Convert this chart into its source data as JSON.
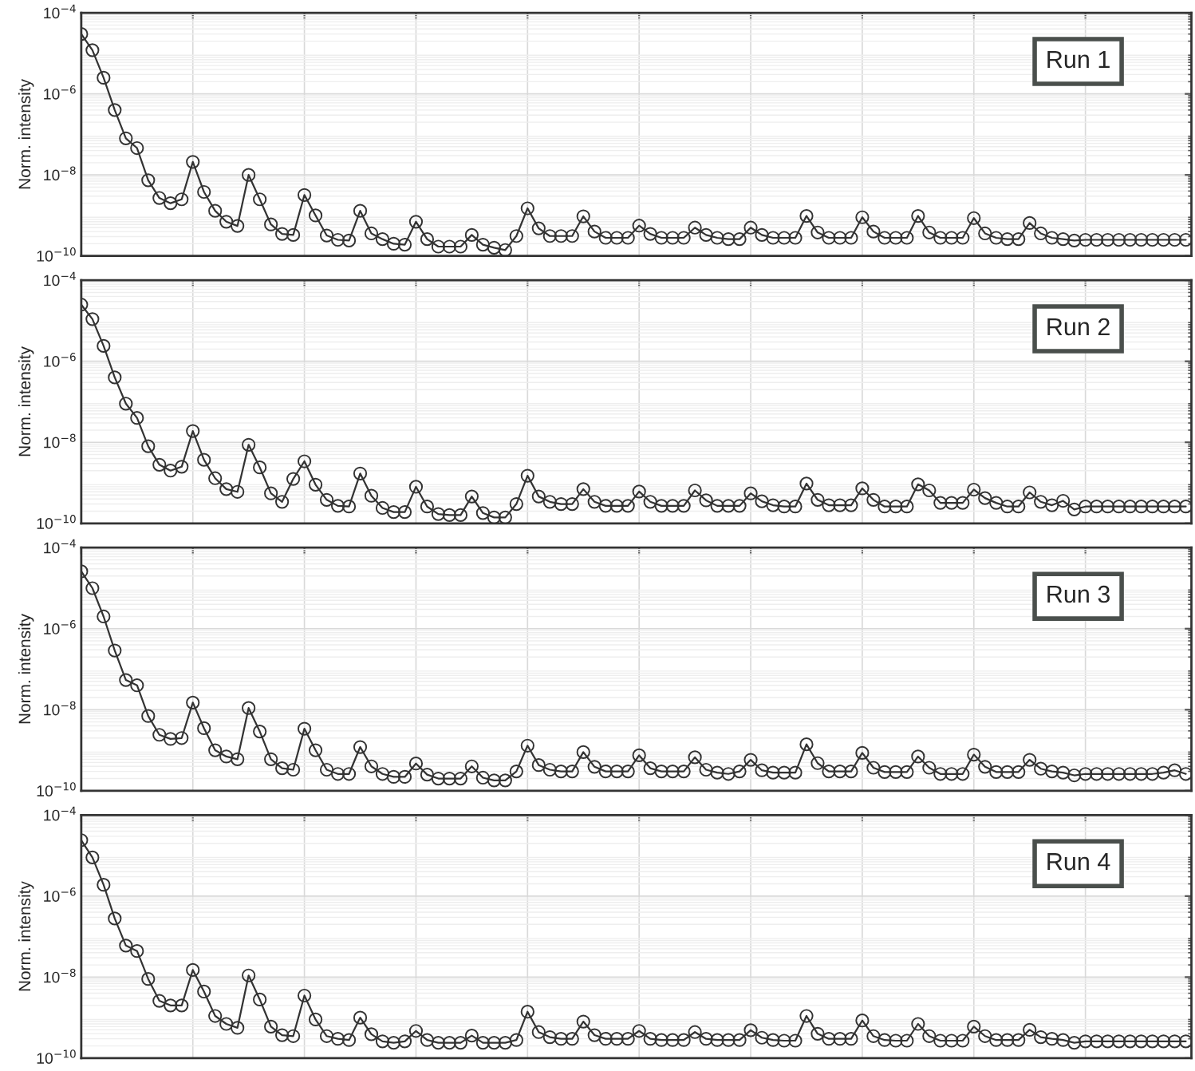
{
  "chart_data": [
    {
      "type": "line",
      "ylabel": "Norm. intensity",
      "annotations": [
        "Run 1"
      ],
      "log": true,
      "grid": true,
      "tick_labels": "y",
      "marker": "circle",
      "line_style": "solid",
      "ylim": [
        1e-10,
        0.0001
      ],
      "yticks": [
        {
          "value": 1e-10,
          "label": "10$^{−10}$"
        },
        {
          "value": 1e-08,
          "label": "10$^{−8}$"
        },
        {
          "value": 1e-06,
          "label": "10$^{−6}$"
        },
        {
          "value": 0.0001,
          "label": "10$^{−4}$"
        }
      ],
      "categories": [
        null,
        null,
        null,
        null,
        null,
        null,
        null,
        null,
        null,
        null,
        null,
        null,
        null,
        null,
        null,
        null,
        null,
        null,
        null,
        null,
        null,
        null,
        null,
        null,
        null,
        null,
        null,
        null,
        null,
        null,
        null,
        null,
        null,
        null,
        null,
        null,
        null,
        null,
        null,
        null,
        null,
        null,
        null,
        null,
        null,
        null,
        null,
        null,
        null,
        null,
        null,
        null,
        null,
        null,
        null,
        null,
        null,
        null,
        null,
        null,
        null,
        null,
        null,
        null,
        null,
        null,
        null,
        null,
        null,
        null,
        null,
        null,
        null,
        null,
        null,
        null,
        null,
        null,
        null,
        null,
        null,
        null,
        null,
        null,
        null,
        null,
        null,
        null,
        null,
        null,
        null,
        null,
        null,
        null,
        null,
        null,
        null,
        null,
        null,
        null
      ],
      "series": [
        {
          "color": "#333333",
          "values": [
            3e-05,
            1.2e-05,
            2.5e-06,
            4e-07,
            8e-08,
            4.6e-08,
            7.4e-09,
            2.7e-09,
            2e-09,
            2.5e-09,
            2.1e-08,
            3.8e-09,
            1.3e-09,
            7e-10,
            5.5e-10,
            1e-08,
            2.5e-09,
            6e-10,
            3.5e-10,
            3.3e-10,
            3.2e-09,
            1e-09,
            3.2e-10,
            2.5e-10,
            2.4e-10,
            1.3e-09,
            3.6e-10,
            2.6e-10,
            2e-10,
            1.9e-10,
            7e-10,
            2.6e-10,
            1.7e-10,
            1.7e-10,
            1.7e-10,
            3.3e-10,
            1.9e-10,
            1.6e-10,
            1.4e-10,
            3.1e-10,
            1.5e-09,
            4.8e-10,
            3.1e-10,
            3.1e-10,
            3.1e-10,
            9.5e-10,
            4e-10,
            2.8e-10,
            2.8e-10,
            2.8e-10,
            5.6e-10,
            3.5e-10,
            2.8e-10,
            2.8e-10,
            2.8e-10,
            5e-10,
            3.3e-10,
            2.8e-10,
            2.6e-10,
            2.6e-10,
            5e-10,
            3.3e-10,
            2.8e-10,
            2.8e-10,
            2.8e-10,
            9.7e-10,
            3.8e-10,
            2.8e-10,
            2.8e-10,
            2.8e-10,
            9e-10,
            4e-10,
            2.8e-10,
            2.8e-10,
            2.8e-10,
            9.7e-10,
            3.8e-10,
            2.8e-10,
            2.8e-10,
            2.8e-10,
            8.6e-10,
            3.6e-10,
            2.8e-10,
            2.6e-10,
            2.6e-10,
            6.5e-10,
            3.6e-10,
            2.8e-10,
            2.6e-10,
            2.4e-10,
            2.5e-10,
            2.5e-10,
            2.5e-10,
            2.5e-10,
            2.5e-10,
            2.5e-10,
            2.5e-10,
            2.5e-10,
            2.5e-10,
            2.5e-10
          ]
        }
      ]
    },
    {
      "type": "line",
      "ylabel": "Norm. intensity",
      "annotations": [
        "Run 2"
      ],
      "log": true,
      "grid": true,
      "tick_labels": "y",
      "marker": "circle",
      "line_style": "solid",
      "ylim": [
        1e-10,
        0.0001
      ],
      "yticks": [
        {
          "value": 1e-10,
          "label": "10$^{−10}$"
        },
        {
          "value": 1e-08,
          "label": "10$^{−8}$"
        },
        {
          "value": 1e-06,
          "label": "10$^{−6}$"
        },
        {
          "value": 0.0001,
          "label": "10$^{−4}$"
        }
      ],
      "categories": [
        null,
        null,
        null,
        null,
        null,
        null,
        null,
        null,
        null,
        null,
        null,
        null,
        null,
        null,
        null,
        null,
        null,
        null,
        null,
        null,
        null,
        null,
        null,
        null,
        null,
        null,
        null,
        null,
        null,
        null,
        null,
        null,
        null,
        null,
        null,
        null,
        null,
        null,
        null,
        null,
        null,
        null,
        null,
        null,
        null,
        null,
        null,
        null,
        null,
        null,
        null,
        null,
        null,
        null,
        null,
        null,
        null,
        null,
        null,
        null,
        null,
        null,
        null,
        null,
        null,
        null,
        null,
        null,
        null,
        null,
        null,
        null,
        null,
        null,
        null,
        null,
        null,
        null,
        null,
        null,
        null,
        null,
        null,
        null,
        null,
        null,
        null,
        null,
        null,
        null,
        null,
        null,
        null,
        null,
        null,
        null,
        null,
        null,
        null,
        null
      ],
      "series": [
        {
          "color": "#333333",
          "values": [
            2.5e-05,
            1.1e-05,
            2.4e-06,
            4e-07,
            9e-08,
            4e-08,
            8e-09,
            2.8e-09,
            2e-09,
            2.5e-09,
            1.9e-08,
            3.7e-09,
            1.3e-09,
            7e-10,
            6e-10,
            8.7e-09,
            2.4e-09,
            5.5e-10,
            3.4e-10,
            1.25e-09,
            3.4e-09,
            9e-10,
            3.8e-10,
            2.7e-10,
            2.6e-10,
            1.7e-09,
            4.8e-10,
            2.4e-10,
            1.9e-10,
            1.9e-10,
            8e-10,
            2.6e-10,
            1.7e-10,
            1.6e-10,
            1.6e-10,
            4.6e-10,
            1.8e-10,
            1.4e-10,
            1.4e-10,
            3e-10,
            1.5e-09,
            4.6e-10,
            3.4e-10,
            3e-10,
            3e-10,
            7e-10,
            3.4e-10,
            2.7e-10,
            2.7e-10,
            2.7e-10,
            6.1e-10,
            3.4e-10,
            2.7e-10,
            2.7e-10,
            2.7e-10,
            6.5e-10,
            3.7e-10,
            2.7e-10,
            2.7e-10,
            2.7e-10,
            5.5e-10,
            3.5e-10,
            2.8e-10,
            2.6e-10,
            2.6e-10,
            9.6e-10,
            3.8e-10,
            2.8e-10,
            2.8e-10,
            2.8e-10,
            7.3e-10,
            3.8e-10,
            2.6e-10,
            2.6e-10,
            2.6e-10,
            9.2e-10,
            6.5e-10,
            3.2e-10,
            3.2e-10,
            3.2e-10,
            6.8e-10,
            4.2e-10,
            3.2e-10,
            2.6e-10,
            2.6e-10,
            5.8e-10,
            3.4e-10,
            2.8e-10,
            3.6e-10,
            2.2e-10,
            2.6e-10,
            2.6e-10,
            2.6e-10,
            2.6e-10,
            2.6e-10,
            2.6e-10,
            2.6e-10,
            2.6e-10,
            2.6e-10,
            2.6e-10
          ]
        }
      ]
    },
    {
      "type": "line",
      "ylabel": "Norm. intensity",
      "annotations": [
        "Run 3"
      ],
      "log": true,
      "grid": true,
      "tick_labels": "y",
      "marker": "circle",
      "line_style": "solid",
      "ylim": [
        1e-10,
        0.0001
      ],
      "yticks": [
        {
          "value": 1e-10,
          "label": "10$^{−10}$"
        },
        {
          "value": 1e-08,
          "label": "10$^{−8}$"
        },
        {
          "value": 1e-06,
          "label": "10$^{−6}$"
        },
        {
          "value": 0.0001,
          "label": "10$^{−4}$"
        }
      ],
      "categories": [
        null,
        null,
        null,
        null,
        null,
        null,
        null,
        null,
        null,
        null,
        null,
        null,
        null,
        null,
        null,
        null,
        null,
        null,
        null,
        null,
        null,
        null,
        null,
        null,
        null,
        null,
        null,
        null,
        null,
        null,
        null,
        null,
        null,
        null,
        null,
        null,
        null,
        null,
        null,
        null,
        null,
        null,
        null,
        null,
        null,
        null,
        null,
        null,
        null,
        null,
        null,
        null,
        null,
        null,
        null,
        null,
        null,
        null,
        null,
        null,
        null,
        null,
        null,
        null,
        null,
        null,
        null,
        null,
        null,
        null,
        null,
        null,
        null,
        null,
        null,
        null,
        null,
        null,
        null,
        null,
        null,
        null,
        null,
        null,
        null,
        null,
        null,
        null,
        null,
        null,
        null,
        null,
        null,
        null,
        null,
        null,
        null,
        null,
        null,
        null
      ],
      "series": [
        {
          "color": "#333333",
          "values": [
            2.6e-05,
            1e-05,
            2e-06,
            2.9e-07,
            5.4e-08,
            4e-08,
            7e-09,
            2.4e-09,
            1.9e-09,
            2e-09,
            1.5e-08,
            3.5e-09,
            1e-09,
            7e-10,
            6e-10,
            1.1e-08,
            2.9e-09,
            6e-10,
            3.6e-10,
            3.3e-10,
            3.4e-09,
            1e-09,
            3.3e-10,
            2.6e-10,
            2.6e-10,
            1.2e-09,
            4e-10,
            2.6e-10,
            2.2e-10,
            2.2e-10,
            4.7e-10,
            2.5e-10,
            2e-10,
            2e-10,
            2e-10,
            4e-10,
            2.1e-10,
            1.8e-10,
            1.8e-10,
            3e-10,
            1.3e-09,
            4.3e-10,
            3.3e-10,
            3e-10,
            3e-10,
            9e-10,
            3.9e-10,
            3e-10,
            3e-10,
            3e-10,
            7.5e-10,
            3.6e-10,
            3e-10,
            3e-10,
            3e-10,
            6.7e-10,
            3.3e-10,
            2.8e-10,
            2.6e-10,
            3e-10,
            5.8e-10,
            3.2e-10,
            2.8e-10,
            2.8e-10,
            2.8e-10,
            1.4e-09,
            4.8e-10,
            3e-10,
            3e-10,
            3e-10,
            8.6e-10,
            3.7e-10,
            2.9e-10,
            2.9e-10,
            2.9e-10,
            7e-10,
            3.7e-10,
            2.6e-10,
            2.6e-10,
            2.6e-10,
            7.8e-10,
            3.9e-10,
            2.9e-10,
            2.9e-10,
            2.9e-10,
            5.8e-10,
            3.5e-10,
            3e-10,
            2.8e-10,
            2.4e-10,
            2.6e-10,
            2.6e-10,
            2.6e-10,
            2.6e-10,
            2.6e-10,
            2.6e-10,
            2.6e-10,
            2.8e-10,
            3.2e-10,
            2.6e-10
          ]
        }
      ]
    },
    {
      "type": "line",
      "ylabel": "Norm. intensity",
      "annotations": [
        "Run 4"
      ],
      "log": true,
      "grid": true,
      "tick_labels": "y",
      "marker": "circle",
      "line_style": "solid",
      "ylim": [
        1e-10,
        0.0001
      ],
      "yticks": [
        {
          "value": 1e-10,
          "label": "10$^{−10}$"
        },
        {
          "value": 1e-08,
          "label": "10$^{−8}$"
        },
        {
          "value": 1e-06,
          "label": "10$^{−6}$"
        },
        {
          "value": 0.0001,
          "label": "10$^{−4}$"
        }
      ],
      "categories": [
        null,
        null,
        null,
        null,
        null,
        null,
        null,
        null,
        null,
        null,
        null,
        null,
        null,
        null,
        null,
        null,
        null,
        null,
        null,
        null,
        null,
        null,
        null,
        null,
        null,
        null,
        null,
        null,
        null,
        null,
        null,
        null,
        null,
        null,
        null,
        null,
        null,
        null,
        null,
        null,
        null,
        null,
        null,
        null,
        null,
        null,
        null,
        null,
        null,
        null,
        null,
        null,
        null,
        null,
        null,
        null,
        null,
        null,
        null,
        null,
        null,
        null,
        null,
        null,
        null,
        null,
        null,
        null,
        null,
        null,
        null,
        null,
        null,
        null,
        null,
        null,
        null,
        null,
        null,
        null,
        null,
        null,
        null,
        null,
        null,
        null,
        null,
        null,
        null,
        null,
        null,
        null,
        null,
        null,
        null,
        null,
        null,
        null,
        null,
        null
      ],
      "series": [
        {
          "color": "#333333",
          "values": [
            2.4e-05,
            9e-06,
            1.9e-06,
            2.8e-07,
            6e-08,
            4.4e-08,
            9e-09,
            2.6e-09,
            2e-09,
            2e-09,
            1.5e-08,
            4.4e-09,
            1.1e-09,
            7e-10,
            5.6e-10,
            1.1e-08,
            2.8e-09,
            6e-10,
            3.7e-10,
            3.5e-10,
            3.5e-09,
            9e-10,
            3.5e-10,
            3e-10,
            2.8e-10,
            1e-09,
            3.9e-10,
            2.6e-10,
            2.4e-10,
            2.6e-10,
            4.7e-10,
            2.8e-10,
            2.4e-10,
            2.4e-10,
            2.4e-10,
            3.6e-10,
            2.4e-10,
            2.4e-10,
            2.4e-10,
            2.8e-10,
            1.4e-09,
            4.4e-10,
            3.3e-10,
            3e-10,
            3e-10,
            8e-10,
            3.7e-10,
            3e-10,
            3e-10,
            3e-10,
            4.7e-10,
            3e-10,
            2.8e-10,
            2.8e-10,
            2.8e-10,
            4.4e-10,
            3e-10,
            2.8e-10,
            2.8e-10,
            2.8e-10,
            4.9e-10,
            3.2e-10,
            2.8e-10,
            2.7e-10,
            2.7e-10,
            1.1e-09,
            4e-10,
            3e-10,
            3e-10,
            3e-10,
            8.5e-10,
            3.5e-10,
            2.8e-10,
            2.7e-10,
            2.7e-10,
            7e-10,
            3.5e-10,
            2.7e-10,
            2.7e-10,
            2.7e-10,
            6e-10,
            3.5e-10,
            2.8e-10,
            2.8e-10,
            2.8e-10,
            5e-10,
            3.3e-10,
            3e-10,
            2.8e-10,
            2.4e-10,
            2.6e-10,
            2.6e-10,
            2.6e-10,
            2.6e-10,
            2.6e-10,
            2.6e-10,
            2.6e-10,
            2.6e-10,
            2.6e-10,
            2.6e-10
          ]
        }
      ]
    }
  ]
}
